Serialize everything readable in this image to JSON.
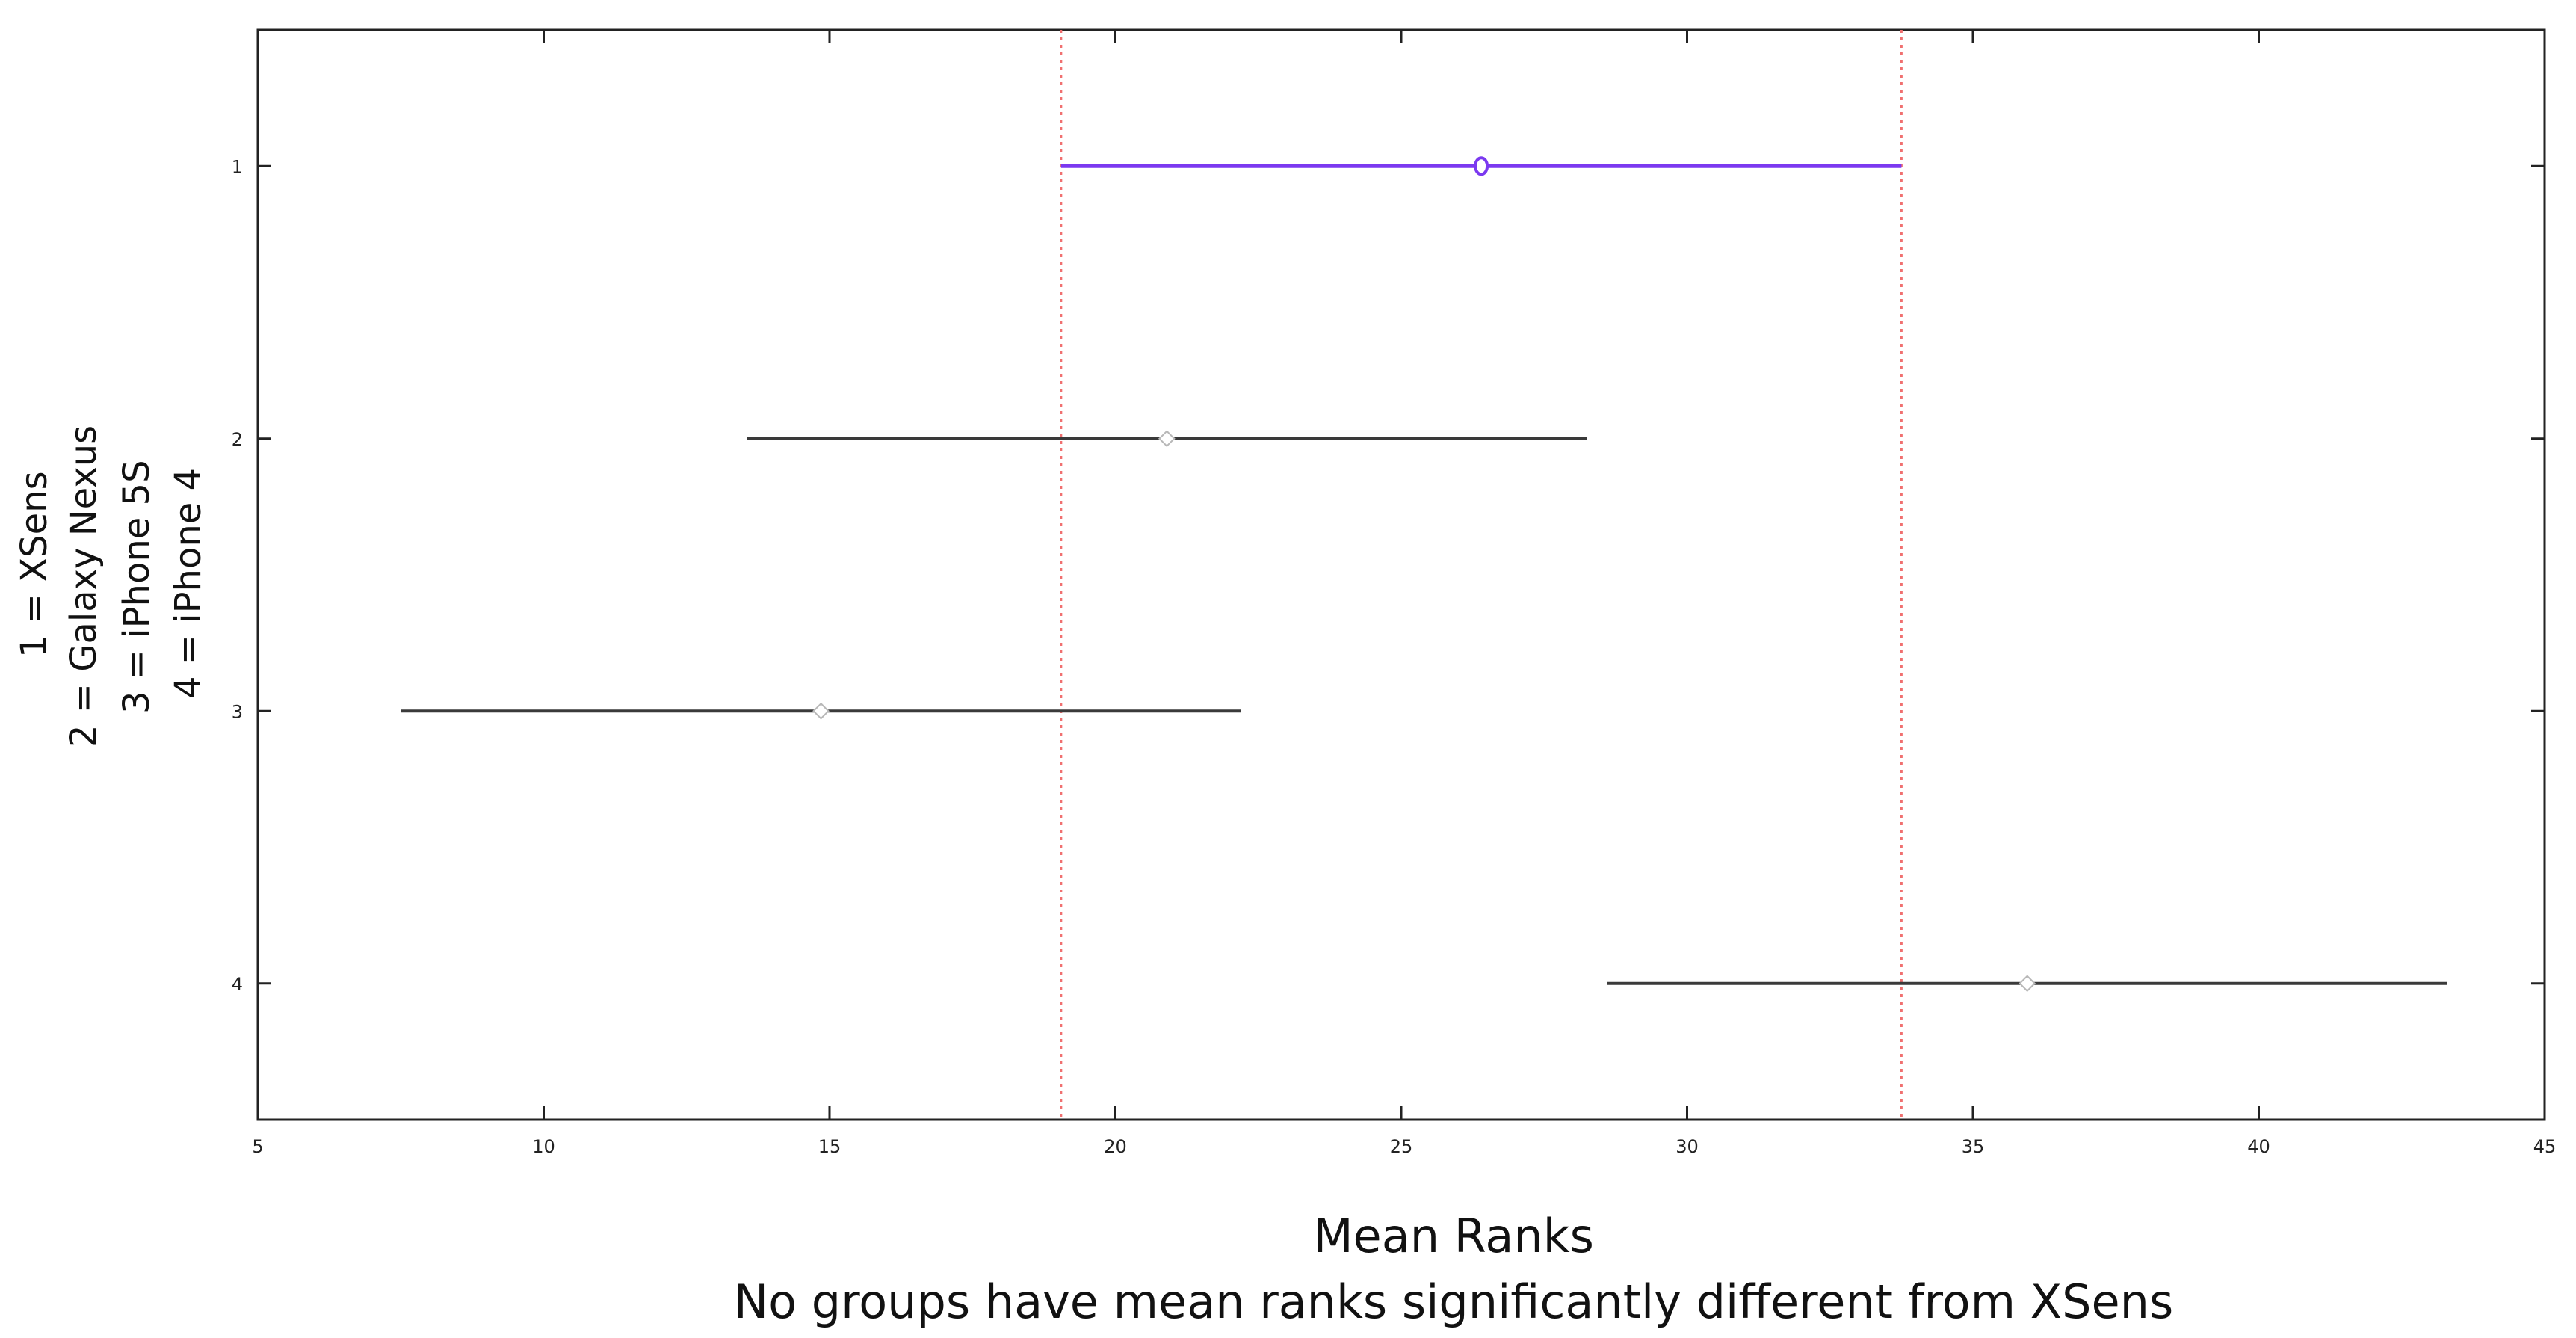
{
  "chart_data": {
    "type": "scatter",
    "xlabel": "Mean Ranks",
    "subtitle": "No groups have mean ranks significantly different from XSens",
    "ylabel_lines": [
      "1 = XSens",
      "2 = Galaxy Nexus",
      "3 = iPhone 5S",
      "4 = iPhone 4"
    ],
    "xlim": [
      5,
      45
    ],
    "ylim": [
      0.5,
      4.5
    ],
    "y_reversed": true,
    "x_ticks": [
      5,
      10,
      15,
      20,
      25,
      30,
      35,
      40,
      45
    ],
    "x_tick_labels": [
      "5",
      "10",
      "15",
      "20",
      "25",
      "30",
      "35",
      "40",
      "45"
    ],
    "y_ticks": [
      1,
      2,
      3,
      4
    ],
    "y_tick_labels": [
      "1",
      "2",
      "3",
      "4"
    ],
    "grid": false,
    "groups": [
      {
        "group": 1,
        "mean_rank": 26.4,
        "lower": 19.05,
        "upper": 33.75,
        "highlighted": true
      },
      {
        "group": 2,
        "mean_rank": 20.9,
        "lower": 13.55,
        "upper": 28.25,
        "highlighted": false
      },
      {
        "group": 3,
        "mean_rank": 14.85,
        "lower": 7.5,
        "upper": 22.2,
        "highlighted": false
      },
      {
        "group": 4,
        "mean_rank": 35.95,
        "lower": 28.6,
        "upper": 43.3,
        "highlighted": false
      }
    ],
    "reference_lines": [
      19.05,
      33.75
    ],
    "colors": {
      "highlight": "#7b39f0",
      "other": "#3a3a3a",
      "other_marker": "#b8b8b8",
      "reference": "#f07070",
      "axes": "#222222"
    }
  }
}
